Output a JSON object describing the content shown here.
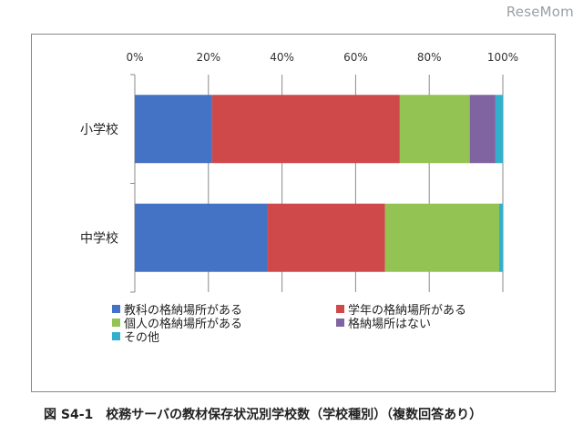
{
  "watermark": "ReseMom",
  "caption": "図 S4-1　校務サーバの教材保存状況別学校数（学校種別）（複数回答あり）",
  "chart_data": {
    "type": "bar",
    "orientation": "horizontal",
    "stacked": "percent",
    "categories": [
      "小学校",
      "中学校"
    ],
    "x_ticks": [
      "0%",
      "20%",
      "40%",
      "60%",
      "80%",
      "100%"
    ],
    "xlim": [
      0,
      100
    ],
    "grid": true,
    "legend_position": "bottom",
    "series": [
      {
        "name": "教科の格納場所がある",
        "color": "#4472c4",
        "values": [
          21,
          36
        ]
      },
      {
        "name": "学年の格納場所がある",
        "color": "#d0494a",
        "values": [
          51,
          32
        ]
      },
      {
        "name": "個人の格納場所がある",
        "color": "#92c353",
        "values": [
          19,
          31
        ]
      },
      {
        "name": "格納場所はない",
        "color": "#8064a2",
        "values": [
          7,
          0
        ]
      },
      {
        "name": "その他",
        "color": "#31b0cb",
        "values": [
          2,
          1.5
        ]
      }
    ]
  }
}
